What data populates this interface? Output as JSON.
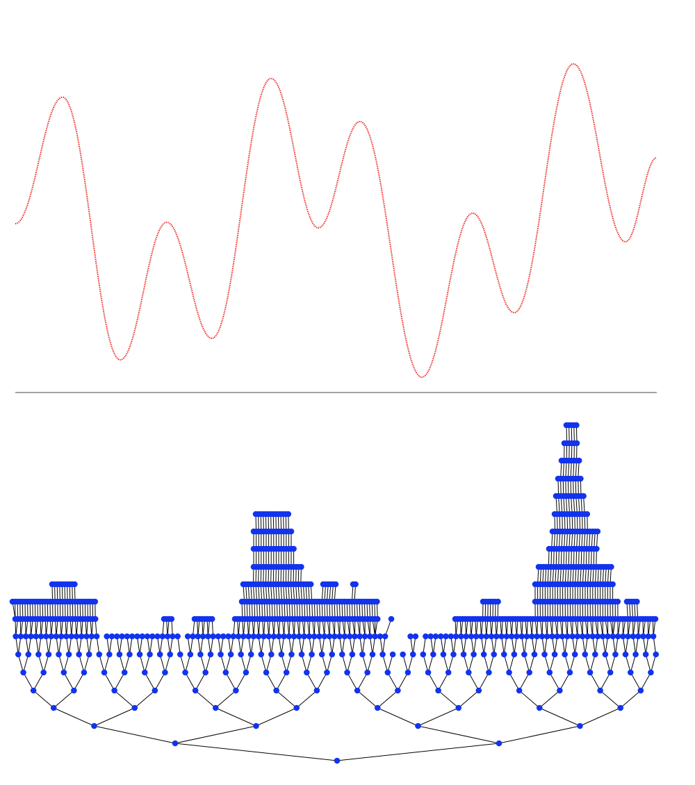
{
  "chart_data": {
    "type": "line",
    "x": [
      0,
      68,
      151,
      218,
      283,
      368,
      436,
      496,
      585,
      658,
      718,
      803,
      878,
      923
    ],
    "values": [
      243,
      425,
      47,
      245,
      78,
      452,
      237,
      390,
      22,
      258,
      115,
      473,
      217,
      338
    ],
    "color": "#e8231b",
    "xlim": [
      0,
      923
    ],
    "ylim": [
      0,
      545
    ]
  }
}
